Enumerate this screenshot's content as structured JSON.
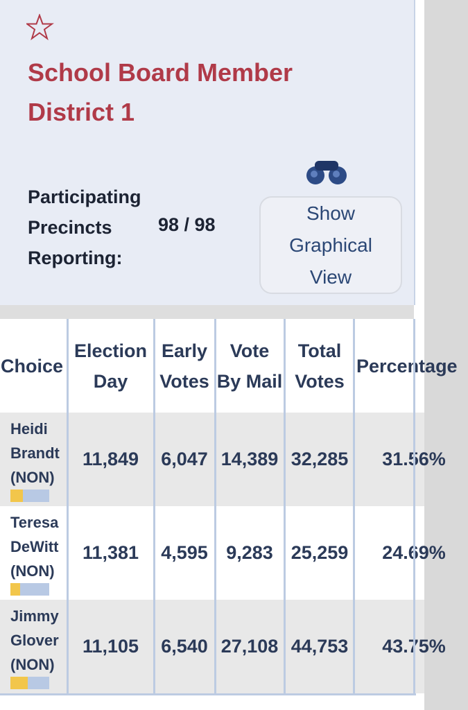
{
  "header": {
    "title": "School Board Member District 1",
    "precincts_label": "Participating Precincts Reporting:",
    "precincts_value": "98 / 98",
    "button": "Show Graphical View"
  },
  "table": {
    "columns": [
      "Choice",
      "Election Day",
      "Early Votes",
      "Vote By Mail",
      "Total Votes",
      "Percentage"
    ],
    "rows": [
      [
        "Heidi Brandt (NON)",
        "11,849",
        "6,047",
        "14,389",
        "32,285",
        {
          "value": 31.56,
          "label": "31.56%"
        }
      ],
      [
        "Teresa DeWitt (NON)",
        "11,381",
        "4,595",
        "9,283",
        "25,259",
        {
          "value": 24.69,
          "label": "24.69%"
        }
      ],
      [
        "Jimmy Glover (NON)",
        "11,105",
        "6,540",
        "27,108",
        "44,753",
        {
          "value": 43.75,
          "label": "43.75%"
        }
      ]
    ]
  }
}
